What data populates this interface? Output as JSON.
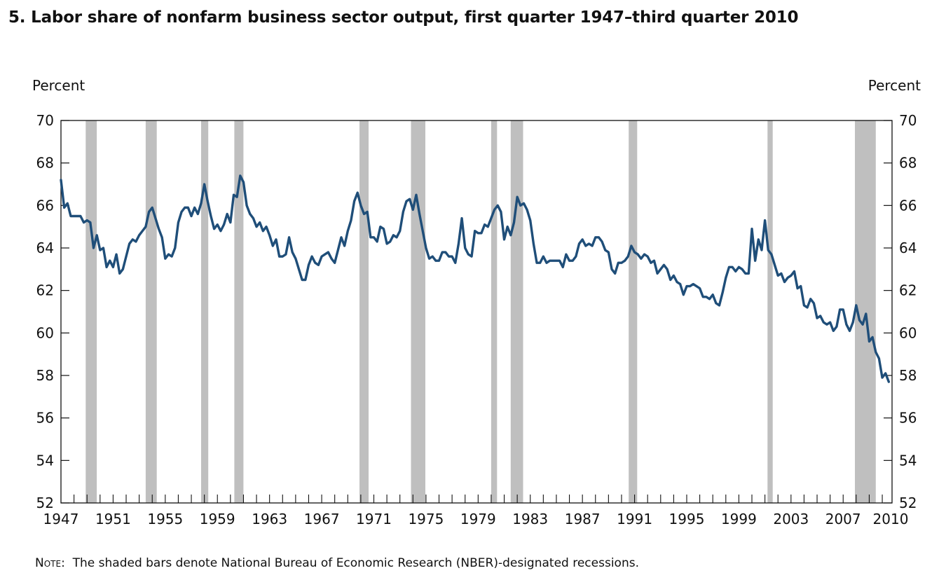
{
  "title": "5. Labor share of nonfarm business sector output, first quarter 1947–third quarter 2010",
  "note": {
    "label": "Note:",
    "text": "The shaded bars denote National Bureau of Economic Research (NBER)-designated recessions."
  },
  "chart_data": {
    "type": "line",
    "title": "5. Labor share of nonfarm business sector output, first quarter 1947–third quarter 2010",
    "ylabel_left": "Percent",
    "ylabel_right": "Percent",
    "ylim": [
      52,
      70
    ],
    "yticks": [
      52,
      54,
      56,
      58,
      60,
      62,
      64,
      66,
      68,
      70
    ],
    "xlim": [
      1947.0,
      2010.75
    ],
    "xtick_labels": [
      "1947",
      "1951",
      "1955",
      "1959",
      "1963",
      "1967",
      "1971",
      "1975",
      "1979",
      "1983",
      "1987",
      "1991",
      "1995",
      "1999",
      "2003",
      "2007",
      "2010"
    ],
    "xtick_years": [
      1947,
      1951,
      1955,
      1959,
      1963,
      1967,
      1971,
      1975,
      1979,
      1983,
      1987,
      1991,
      1995,
      1999,
      2003,
      2007,
      2010
    ],
    "grid": false,
    "colors": {
      "line": "#1f4e79",
      "recession": "#bfbfbf",
      "axis": "#111111"
    },
    "recessions": [
      [
        1948.9,
        1949.75
      ],
      [
        1953.5,
        1954.35
      ],
      [
        1957.75,
        1958.3
      ],
      [
        1960.3,
        1961.0
      ],
      [
        1969.9,
        1970.6
      ],
      [
        1973.85,
        1974.95
      ],
      [
        1980.0,
        1980.45
      ],
      [
        1981.5,
        1982.45
      ],
      [
        1990.55,
        1991.2
      ],
      [
        2001.2,
        2001.6
      ],
      [
        2007.9,
        2009.5
      ]
    ],
    "series": [
      {
        "points": [
          [
            1947.0,
            67.2
          ],
          [
            1947.25,
            65.9
          ],
          [
            1947.5,
            66.1
          ],
          [
            1947.75,
            65.5
          ],
          [
            1948.0,
            65.5
          ],
          [
            1948.25,
            65.5
          ],
          [
            1948.5,
            65.5
          ],
          [
            1948.75,
            65.2
          ],
          [
            1949.0,
            65.3
          ],
          [
            1949.25,
            65.2
          ],
          [
            1949.5,
            64.0
          ],
          [
            1949.75,
            64.6
          ],
          [
            1950.0,
            63.9
          ],
          [
            1950.25,
            64.0
          ],
          [
            1950.5,
            63.1
          ],
          [
            1950.75,
            63.4
          ],
          [
            1951.0,
            63.1
          ],
          [
            1951.25,
            63.7
          ],
          [
            1951.5,
            62.8
          ],
          [
            1951.75,
            63.0
          ],
          [
            1952.0,
            63.6
          ],
          [
            1952.25,
            64.2
          ],
          [
            1952.5,
            64.4
          ],
          [
            1952.75,
            64.3
          ],
          [
            1953.0,
            64.6
          ],
          [
            1953.25,
            64.8
          ],
          [
            1953.5,
            65.0
          ],
          [
            1953.75,
            65.7
          ],
          [
            1954.0,
            65.9
          ],
          [
            1954.25,
            65.4
          ],
          [
            1954.5,
            64.9
          ],
          [
            1954.75,
            64.5
          ],
          [
            1955.0,
            63.5
          ],
          [
            1955.25,
            63.7
          ],
          [
            1955.5,
            63.6
          ],
          [
            1955.75,
            64.0
          ],
          [
            1956.0,
            65.2
          ],
          [
            1956.25,
            65.7
          ],
          [
            1956.5,
            65.9
          ],
          [
            1956.75,
            65.9
          ],
          [
            1957.0,
            65.5
          ],
          [
            1957.25,
            65.9
          ],
          [
            1957.5,
            65.6
          ],
          [
            1957.75,
            66.1
          ],
          [
            1958.0,
            67.0
          ],
          [
            1958.25,
            66.2
          ],
          [
            1958.5,
            65.5
          ],
          [
            1958.75,
            64.9
          ],
          [
            1959.0,
            65.1
          ],
          [
            1959.25,
            64.8
          ],
          [
            1959.5,
            65.1
          ],
          [
            1959.75,
            65.6
          ],
          [
            1960.0,
            65.2
          ],
          [
            1960.25,
            66.5
          ],
          [
            1960.5,
            66.4
          ],
          [
            1960.75,
            67.4
          ],
          [
            1961.0,
            67.1
          ],
          [
            1961.25,
            66.0
          ],
          [
            1961.5,
            65.6
          ],
          [
            1961.75,
            65.4
          ],
          [
            1962.0,
            65.0
          ],
          [
            1962.25,
            65.2
          ],
          [
            1962.5,
            64.8
          ],
          [
            1962.75,
            65.0
          ],
          [
            1963.0,
            64.6
          ],
          [
            1963.25,
            64.1
          ],
          [
            1963.5,
            64.4
          ],
          [
            1963.75,
            63.6
          ],
          [
            1964.0,
            63.6
          ],
          [
            1964.25,
            63.7
          ],
          [
            1964.5,
            64.5
          ],
          [
            1964.75,
            63.8
          ],
          [
            1965.0,
            63.5
          ],
          [
            1965.25,
            63.0
          ],
          [
            1965.5,
            62.5
          ],
          [
            1965.75,
            62.5
          ],
          [
            1966.0,
            63.2
          ],
          [
            1966.25,
            63.6
          ],
          [
            1966.5,
            63.3
          ],
          [
            1966.75,
            63.2
          ],
          [
            1967.0,
            63.6
          ],
          [
            1967.25,
            63.7
          ],
          [
            1967.5,
            63.8
          ],
          [
            1967.75,
            63.5
          ],
          [
            1968.0,
            63.3
          ],
          [
            1968.25,
            63.9
          ],
          [
            1968.5,
            64.5
          ],
          [
            1968.75,
            64.1
          ],
          [
            1969.0,
            64.8
          ],
          [
            1969.25,
            65.3
          ],
          [
            1969.5,
            66.2
          ],
          [
            1969.75,
            66.6
          ],
          [
            1970.0,
            66.0
          ],
          [
            1970.25,
            65.6
          ],
          [
            1970.5,
            65.7
          ],
          [
            1970.75,
            64.5
          ],
          [
            1971.0,
            64.5
          ],
          [
            1971.25,
            64.3
          ],
          [
            1971.5,
            65.0
          ],
          [
            1971.75,
            64.9
          ],
          [
            1972.0,
            64.2
          ],
          [
            1972.25,
            64.3
          ],
          [
            1972.5,
            64.6
          ],
          [
            1972.75,
            64.5
          ],
          [
            1973.0,
            64.8
          ],
          [
            1973.25,
            65.7
          ],
          [
            1973.5,
            66.2
          ],
          [
            1973.75,
            66.3
          ],
          [
            1974.0,
            65.8
          ],
          [
            1974.25,
            66.5
          ],
          [
            1974.5,
            65.6
          ],
          [
            1974.75,
            64.8
          ],
          [
            1975.0,
            64.0
          ],
          [
            1975.25,
            63.5
          ],
          [
            1975.5,
            63.6
          ],
          [
            1975.75,
            63.4
          ],
          [
            1976.0,
            63.4
          ],
          [
            1976.25,
            63.8
          ],
          [
            1976.5,
            63.8
          ],
          [
            1976.75,
            63.6
          ],
          [
            1977.0,
            63.6
          ],
          [
            1977.25,
            63.3
          ],
          [
            1977.5,
            64.2
          ],
          [
            1977.75,
            65.4
          ],
          [
            1978.0,
            64.0
          ],
          [
            1978.25,
            63.7
          ],
          [
            1978.5,
            63.6
          ],
          [
            1978.75,
            64.8
          ],
          [
            1979.0,
            64.7
          ],
          [
            1979.25,
            64.7
          ],
          [
            1979.5,
            65.1
          ],
          [
            1979.75,
            65.0
          ],
          [
            1980.0,
            65.4
          ],
          [
            1980.25,
            65.8
          ],
          [
            1980.5,
            66.0
          ],
          [
            1980.75,
            65.7
          ],
          [
            1981.0,
            64.4
          ],
          [
            1981.25,
            65.0
          ],
          [
            1981.5,
            64.6
          ],
          [
            1981.75,
            65.2
          ],
          [
            1982.0,
            66.4
          ],
          [
            1982.25,
            66.0
          ],
          [
            1982.5,
            66.1
          ],
          [
            1982.75,
            65.8
          ],
          [
            1983.0,
            65.3
          ],
          [
            1983.25,
            64.2
          ],
          [
            1983.5,
            63.3
          ],
          [
            1983.75,
            63.3
          ],
          [
            1984.0,
            63.6
          ],
          [
            1984.25,
            63.3
          ],
          [
            1984.5,
            63.4
          ],
          [
            1984.75,
            63.4
          ],
          [
            1985.0,
            63.4
          ],
          [
            1985.25,
            63.4
          ],
          [
            1985.5,
            63.1
          ],
          [
            1985.75,
            63.7
          ],
          [
            1986.0,
            63.4
          ],
          [
            1986.25,
            63.4
          ],
          [
            1986.5,
            63.6
          ],
          [
            1986.75,
            64.2
          ],
          [
            1987.0,
            64.4
          ],
          [
            1987.25,
            64.1
          ],
          [
            1987.5,
            64.2
          ],
          [
            1987.75,
            64.1
          ],
          [
            1988.0,
            64.5
          ],
          [
            1988.25,
            64.5
          ],
          [
            1988.5,
            64.3
          ],
          [
            1988.75,
            63.9
          ],
          [
            1989.0,
            63.8
          ],
          [
            1989.25,
            63.0
          ],
          [
            1989.5,
            62.8
          ],
          [
            1989.75,
            63.3
          ],
          [
            1990.0,
            63.3
          ],
          [
            1990.25,
            63.4
          ],
          [
            1990.5,
            63.6
          ],
          [
            1990.75,
            64.1
          ],
          [
            1991.0,
            63.8
          ],
          [
            1991.25,
            63.7
          ],
          [
            1991.5,
            63.5
          ],
          [
            1991.75,
            63.7
          ],
          [
            1992.0,
            63.6
          ],
          [
            1992.25,
            63.3
          ],
          [
            1992.5,
            63.4
          ],
          [
            1992.75,
            62.8
          ],
          [
            1993.0,
            63.0
          ],
          [
            1993.25,
            63.2
          ],
          [
            1993.5,
            63.0
          ],
          [
            1993.75,
            62.5
          ],
          [
            1994.0,
            62.7
          ],
          [
            1994.25,
            62.4
          ],
          [
            1994.5,
            62.3
          ],
          [
            1994.75,
            61.8
          ],
          [
            1995.0,
            62.2
          ],
          [
            1995.25,
            62.2
          ],
          [
            1995.5,
            62.3
          ],
          [
            1995.75,
            62.2
          ],
          [
            1996.0,
            62.1
          ],
          [
            1996.25,
            61.7
          ],
          [
            1996.5,
            61.7
          ],
          [
            1996.75,
            61.6
          ],
          [
            1997.0,
            61.8
          ],
          [
            1997.25,
            61.4
          ],
          [
            1997.5,
            61.3
          ],
          [
            1997.75,
            61.9
          ],
          [
            1998.0,
            62.6
          ],
          [
            1998.25,
            63.1
          ],
          [
            1998.5,
            63.1
          ],
          [
            1998.75,
            62.9
          ],
          [
            1999.0,
            63.1
          ],
          [
            1999.25,
            63.0
          ],
          [
            1999.5,
            62.8
          ],
          [
            1999.75,
            62.8
          ],
          [
            2000.0,
            64.9
          ],
          [
            2000.25,
            63.4
          ],
          [
            2000.5,
            64.4
          ],
          [
            2000.75,
            63.9
          ],
          [
            2001.0,
            65.3
          ],
          [
            2001.25,
            63.9
          ],
          [
            2001.5,
            63.7
          ],
          [
            2001.75,
            63.2
          ],
          [
            2002.0,
            62.7
          ],
          [
            2002.25,
            62.8
          ],
          [
            2002.5,
            62.4
          ],
          [
            2002.75,
            62.6
          ],
          [
            2003.0,
            62.7
          ],
          [
            2003.25,
            62.9
          ],
          [
            2003.5,
            62.1
          ],
          [
            2003.75,
            62.2
          ],
          [
            2004.0,
            61.3
          ],
          [
            2004.25,
            61.2
          ],
          [
            2004.5,
            61.6
          ],
          [
            2004.75,
            61.4
          ],
          [
            2005.0,
            60.7
          ],
          [
            2005.25,
            60.8
          ],
          [
            2005.5,
            60.5
          ],
          [
            2005.75,
            60.4
          ],
          [
            2006.0,
            60.5
          ],
          [
            2006.25,
            60.1
          ],
          [
            2006.5,
            60.3
          ],
          [
            2006.75,
            61.1
          ],
          [
            2007.0,
            61.1
          ],
          [
            2007.25,
            60.4
          ],
          [
            2007.5,
            60.1
          ],
          [
            2007.75,
            60.5
          ],
          [
            2008.0,
            61.3
          ],
          [
            2008.25,
            60.6
          ],
          [
            2008.5,
            60.4
          ],
          [
            2008.75,
            60.9
          ],
          [
            2009.0,
            59.6
          ],
          [
            2009.25,
            59.8
          ],
          [
            2009.5,
            59.1
          ],
          [
            2009.75,
            58.8
          ],
          [
            2010.0,
            57.9
          ],
          [
            2010.25,
            58.1
          ],
          [
            2010.5,
            57.7
          ]
        ]
      }
    ]
  }
}
